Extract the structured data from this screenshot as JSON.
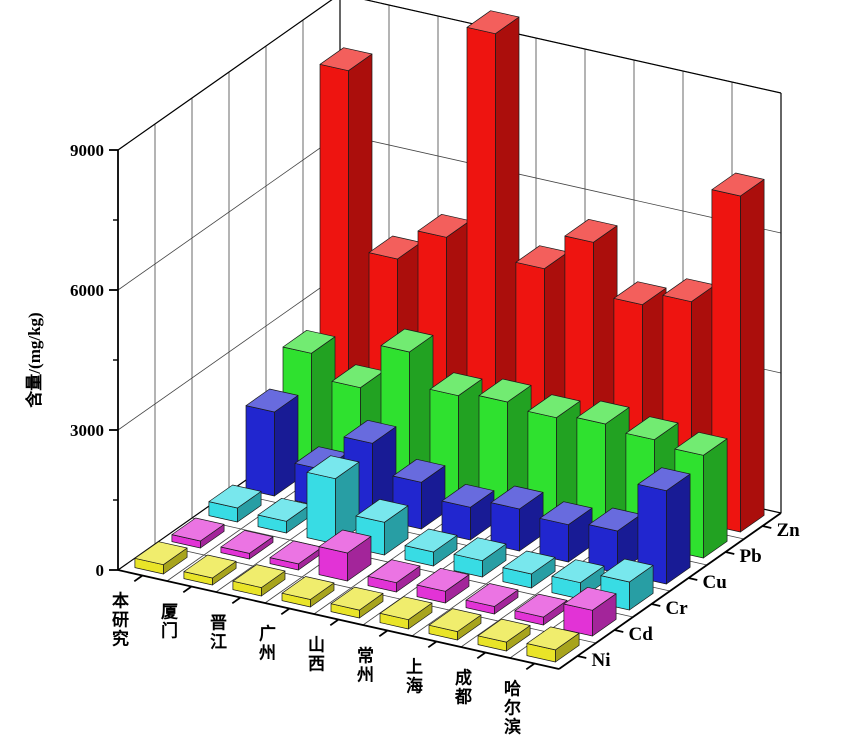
{
  "figure": {
    "background": "#ffffff"
  },
  "chart_data": {
    "type": "bar",
    "subtype": "3d-column",
    "title": "",
    "zlabel": "含量/(mg/kg)",
    "zlim": [
      0,
      9000
    ],
    "z_ticks": [
      0,
      3000,
      6000,
      9000
    ],
    "z_minor_ticks": [
      1500,
      4500,
      7500
    ],
    "categories": [
      "本研究",
      "厦门",
      "晋江",
      "广州",
      "山西",
      "常州",
      "上海",
      "成都",
      "哈尔滨"
    ],
    "depth_axis_front_to_back": [
      "Ni",
      "Cd",
      "Cr",
      "Cu",
      "Pb",
      "Zn"
    ],
    "series": [
      {
        "name": "Ni",
        "color": "#e9e428",
        "values": [
          200,
          150,
          180,
          160,
          170,
          200,
          180,
          190,
          260
        ]
      },
      {
        "name": "Cd",
        "color": "#e233d6",
        "values": [
          150,
          120,
          130,
          600,
          200,
          250,
          160,
          170,
          550
        ]
      },
      {
        "name": "Cr",
        "color": "#38dce4",
        "values": [
          300,
          250,
          1400,
          700,
          300,
          350,
          300,
          350,
          600
        ]
      },
      {
        "name": "Cu",
        "color": "#2126cf",
        "values": [
          1800,
          800,
          1600,
          1000,
          700,
          900,
          800,
          900,
          2000
        ]
      },
      {
        "name": "Pb",
        "color": "#2fe12f",
        "values": [
          2500,
          2000,
          3000,
          2300,
          2400,
          2300,
          2400,
          2300,
          2200
        ]
      },
      {
        "name": "Zn",
        "color": "#ee1410",
        "values": [
          8000,
          4200,
          4900,
          9500,
          4700,
          5500,
          4400,
          4700,
          7200
        ]
      }
    ],
    "grid": true,
    "legend": "none"
  }
}
